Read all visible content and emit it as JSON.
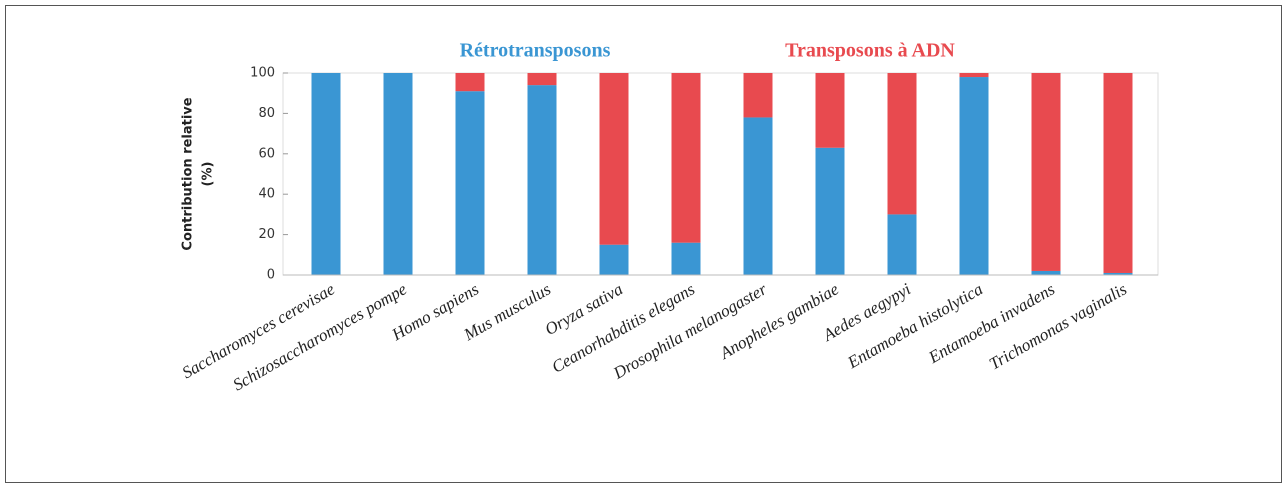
{
  "chart_data": {
    "type": "stacked_bar",
    "y_label": [
      "Contribution relative",
      "(%)"
    ],
    "categories": [
      "Saccharomyces cerevisae",
      "Schizosaccharomyces pompe",
      "Homo sapiens",
      "Mus musculus",
      "Oryza sativa",
      "Ceanorhabditis elegans",
      "Drosophila melanogaster",
      "Anopheles gambiae",
      "Aedes aegypyi",
      "Entamoeba histolytica",
      "Entamoeba invadens",
      "Trichomonas vaginalis"
    ],
    "series": [
      {
        "name": "Rétrotransposons",
        "color": "#3a96d3",
        "values": [
          100,
          100,
          91,
          94,
          15,
          16,
          78,
          63,
          30,
          98,
          2,
          1
        ]
      },
      {
        "name": "Transposons à ADN",
        "color": "#e84a4f",
        "values": [
          0,
          0,
          9,
          6,
          85,
          84,
          22,
          37,
          70,
          2,
          98,
          99
        ]
      }
    ],
    "ylim": [
      0,
      100
    ],
    "yticks": [
      0,
      20,
      40,
      60,
      80,
      100
    ]
  }
}
